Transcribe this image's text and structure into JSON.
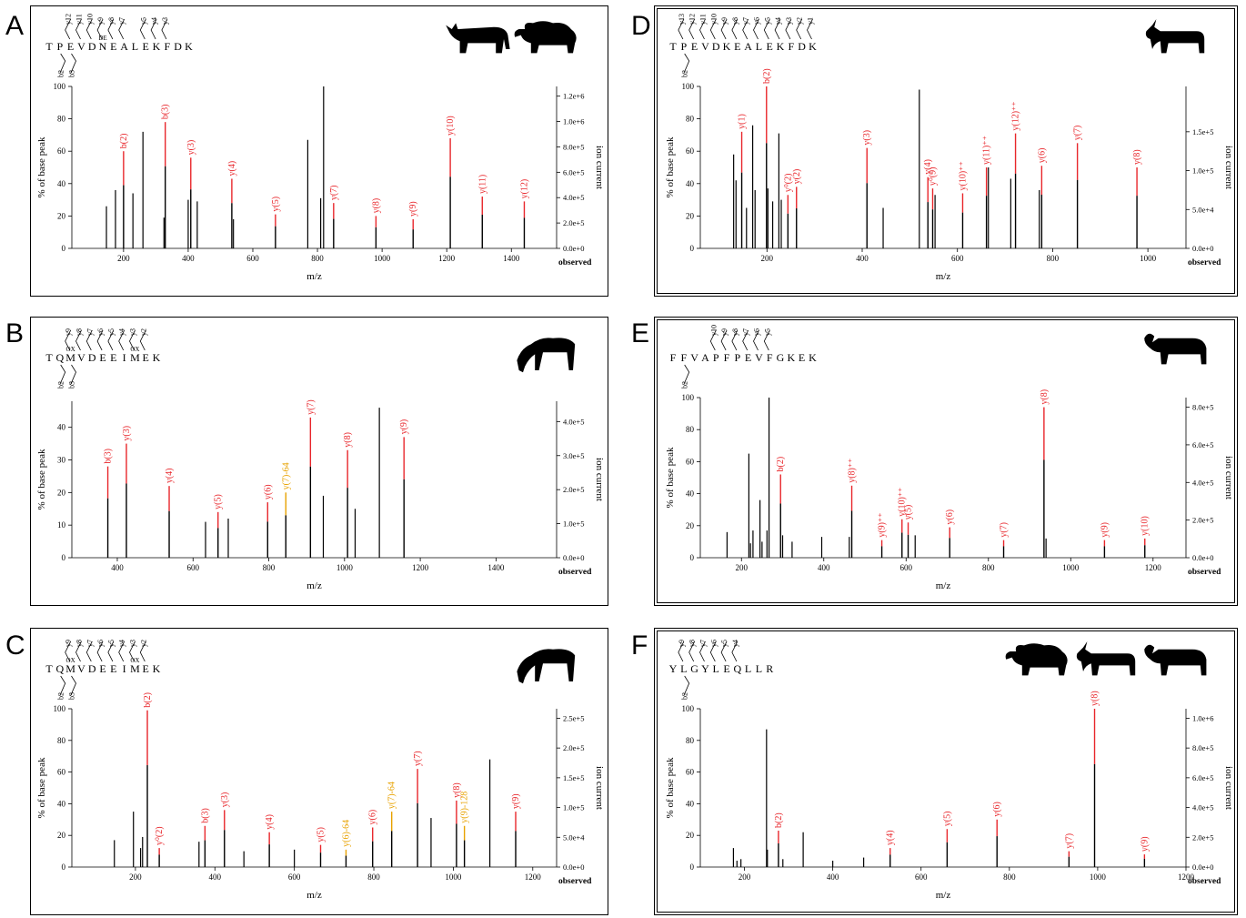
{
  "labels": {
    "ylabel_left": "% of base peak",
    "ylabel_right": "ion current",
    "xlabel": "m/z",
    "observed": "observed"
  },
  "colors": {
    "frag": "#e8262b",
    "neutral": "#e8a200",
    "peak": "#000000"
  },
  "panels": [
    {
      "letter": "A",
      "sequence": [
        "T",
        "P",
        "E",
        "V",
        "D",
        "N",
        "E",
        "A",
        "L",
        "E",
        "K",
        "F",
        "D",
        "K"
      ],
      "seq_marks": [
        {
          "index": 5,
          "text": "DE"
        }
      ],
      "y_ions": [
        "y12",
        "y11",
        "y10",
        "y9",
        "y8",
        "y7",
        "y5",
        "y4",
        "y3"
      ],
      "b_ions": [
        "b2",
        "b3"
      ],
      "animals": [
        "cow-icon",
        "sheep-icon"
      ],
      "chart_data": {
        "type": "bar",
        "xlabel": "m/z",
        "ylabel": "% of base peak",
        "y2label": "ion current",
        "xlim": [
          40,
          1540
        ],
        "ylim": [
          0,
          100
        ],
        "xticks": [
          200,
          400,
          600,
          800,
          1000,
          1200,
          1400
        ],
        "yticks": [
          0,
          20,
          40,
          60,
          80,
          100
        ],
        "y2ticks": [
          "0.0e+0",
          "2.0e+5",
          "4.0e+5",
          "6.0e+5",
          "8.0e+5",
          "1.0e+6",
          "1.2e+6"
        ],
        "peaks": [
          {
            "x": 147,
            "y": 26
          },
          {
            "x": 175,
            "y": 36
          },
          {
            "x": 200,
            "y": 60,
            "label": "b(2)",
            "color": "frag"
          },
          {
            "x": 229,
            "y": 34
          },
          {
            "x": 260,
            "y": 72
          },
          {
            "x": 325,
            "y": 19
          },
          {
            "x": 329,
            "y": 78,
            "label": "b(3)",
            "color": "frag"
          },
          {
            "x": 400,
            "y": 30
          },
          {
            "x": 408,
            "y": 56,
            "label": "y(3)",
            "color": "frag"
          },
          {
            "x": 428,
            "y": 29
          },
          {
            "x": 535,
            "y": 43,
            "label": "y(4)",
            "color": "frag"
          },
          {
            "x": 540,
            "y": 18
          },
          {
            "x": 670,
            "y": 21,
            "label": "y(5)",
            "color": "frag"
          },
          {
            "x": 770,
            "y": 67
          },
          {
            "x": 810,
            "y": 31
          },
          {
            "x": 819,
            "y": 100
          },
          {
            "x": 850,
            "y": 28,
            "label": "y(7)",
            "color": "frag"
          },
          {
            "x": 981,
            "y": 20,
            "label": "y(8)",
            "color": "frag"
          },
          {
            "x": 1096,
            "y": 18,
            "label": "y(9)",
            "color": "frag"
          },
          {
            "x": 1211,
            "y": 68,
            "label": "y(10)",
            "color": "frag"
          },
          {
            "x": 1310,
            "y": 32,
            "label": "y(11)",
            "color": "frag"
          },
          {
            "x": 1440,
            "y": 29,
            "label": "y(12)",
            "color": "frag"
          }
        ]
      }
    },
    {
      "letter": "B",
      "sequence": [
        "T",
        "Q",
        "M",
        "V",
        "D",
        "E",
        "E",
        "I",
        "M",
        "E",
        "K"
      ],
      "seq_marks": [
        {
          "index": 2,
          "text": "OX"
        },
        {
          "index": 8,
          "text": "OX"
        }
      ],
      "y_ions": [
        "y9",
        "y8",
        "y7",
        "y6",
        "y5",
        "y4",
        "y3",
        "y2"
      ],
      "b_ions": [
        "b2",
        "b3"
      ],
      "animals": [
        "horse-icon"
      ],
      "chart_data": {
        "type": "bar",
        "xlabel": "m/z",
        "ylabel": "% of base peak",
        "y2label": "ion current",
        "xlim": [
          280,
          1560
        ],
        "ylim": [
          0,
          48
        ],
        "xticks": [
          400,
          600,
          800,
          1000,
          1200,
          1400
        ],
        "yticks": [
          0,
          10,
          20,
          30,
          40
        ],
        "y2ticks": [
          "0.0e+0",
          "1.0e+5",
          "2.0e+5",
          "3.0e+5",
          "4.0e+5"
        ],
        "peaks": [
          {
            "x": 375,
            "y": 28,
            "label": "b(3)",
            "color": "frag"
          },
          {
            "x": 424,
            "y": 35,
            "label": "y(3)",
            "color": "frag"
          },
          {
            "x": 537,
            "y": 22,
            "label": "y(4)",
            "color": "frag"
          },
          {
            "x": 633,
            "y": 11
          },
          {
            "x": 666,
            "y": 14,
            "label": "y(5)",
            "color": "frag"
          },
          {
            "x": 693,
            "y": 12
          },
          {
            "x": 797,
            "y": 17,
            "label": "y(6)",
            "color": "frag"
          },
          {
            "x": 845,
            "y": 20,
            "label": "y(7)-64",
            "color": "neutral"
          },
          {
            "x": 910,
            "y": 43,
            "label": "y(7)",
            "color": "frag"
          },
          {
            "x": 944,
            "y": 19
          },
          {
            "x": 1008,
            "y": 33,
            "label": "y(8)",
            "color": "frag"
          },
          {
            "x": 1028,
            "y": 15
          },
          {
            "x": 1092,
            "y": 46
          },
          {
            "x": 1157,
            "y": 37,
            "label": "y(9)",
            "color": "frag"
          }
        ]
      }
    },
    {
      "letter": "C",
      "sequence": [
        "T",
        "Q",
        "M",
        "V",
        "D",
        "E",
        "E",
        "I",
        "M",
        "E",
        "K"
      ],
      "seq_marks": [
        {
          "index": 2,
          "text": "OX"
        },
        {
          "index": 8,
          "text": "OX"
        }
      ],
      "y_ions": [
        "y9",
        "y8",
        "y7",
        "y6",
        "y5",
        "y4",
        "y3",
        "y2"
      ],
      "b_ions": [
        "b2",
        "b3"
      ],
      "animals": [
        "horse-icon"
      ],
      "chart_data": {
        "type": "bar",
        "xlabel": "m/z",
        "ylabel": "% of base peak",
        "y2label": "ion current",
        "xlim": [
          40,
          1260
        ],
        "ylim": [
          0,
          100
        ],
        "xticks": [
          200,
          400,
          600,
          800,
          1000,
          1200
        ],
        "yticks": [
          0,
          20,
          40,
          60,
          80,
          100
        ],
        "y2ticks": [
          "0.0e+0",
          "5.0e+4",
          "1.0e+5",
          "1.5e+5",
          "2.0e+5",
          "2.5e+5"
        ],
        "peaks": [
          {
            "x": 147,
            "y": 17
          },
          {
            "x": 195,
            "y": 35
          },
          {
            "x": 213,
            "y": 12
          },
          {
            "x": 218,
            "y": 19
          },
          {
            "x": 230,
            "y": 99,
            "label": "b(2)",
            "color": "frag"
          },
          {
            "x": 260,
            "y": 12,
            "label": "y⁰(2)",
            "color": "frag"
          },
          {
            "x": 360,
            "y": 16
          },
          {
            "x": 375,
            "y": 26,
            "label": "b(3)",
            "color": "frag"
          },
          {
            "x": 424,
            "y": 36,
            "label": "y(3)",
            "color": "frag"
          },
          {
            "x": 473,
            "y": 10
          },
          {
            "x": 537,
            "y": 22,
            "label": "y(4)",
            "color": "frag"
          },
          {
            "x": 600,
            "y": 11
          },
          {
            "x": 666,
            "y": 14,
            "label": "y(5)",
            "color": "frag"
          },
          {
            "x": 730,
            "y": 11,
            "label": "y(6)-64",
            "color": "neutral"
          },
          {
            "x": 797,
            "y": 25,
            "label": "y(6)",
            "color": "frag"
          },
          {
            "x": 845,
            "y": 35,
            "label": "y(7)-64",
            "color": "neutral"
          },
          {
            "x": 910,
            "y": 62,
            "label": "y(7)",
            "color": "frag"
          },
          {
            "x": 944,
            "y": 31
          },
          {
            "x": 1008,
            "y": 42,
            "label": "y(8)",
            "color": "frag"
          },
          {
            "x": 1028,
            "y": 26,
            "label": "y(9)-128",
            "color": "neutral"
          },
          {
            "x": 1092,
            "y": 68
          },
          {
            "x": 1157,
            "y": 35,
            "label": "y(9)",
            "color": "frag"
          }
        ]
      }
    },
    {
      "letter": "D",
      "sequence": [
        "T",
        "P",
        "E",
        "V",
        "D",
        "K",
        "E",
        "A",
        "L",
        "E",
        "K",
        "F",
        "D",
        "K"
      ],
      "seq_marks": [],
      "y_ions": [
        "y13",
        "y12",
        "y11",
        "y10",
        "y9",
        "y8",
        "y7",
        "y6",
        "y5",
        "y4",
        "y3",
        "y2",
        "y1"
      ],
      "b_ions": [
        "b2"
      ],
      "animals": [
        "goat-icon"
      ],
      "chart_data": {
        "type": "bar",
        "xlabel": "m/z",
        "ylabel": "% of base peak",
        "y2label": "ion current",
        "xlim": [
          60,
          1080
        ],
        "ylim": [
          0,
          100
        ],
        "xticks": [
          200,
          400,
          600,
          800,
          1000
        ],
        "yticks": [
          0,
          20,
          40,
          60,
          80,
          100
        ],
        "y2ticks": [
          "0.0e+0",
          "5.0e+4",
          "1.0e+5",
          "1.5e+5"
        ],
        "peaks": [
          {
            "x": 130,
            "y": 58
          },
          {
            "x": 135,
            "y": 42
          },
          {
            "x": 147,
            "y": 72,
            "label": "y(1)",
            "color": "frag"
          },
          {
            "x": 157,
            "y": 25
          },
          {
            "x": 170,
            "y": 76
          },
          {
            "x": 175,
            "y": 36
          },
          {
            "x": 199,
            "y": 100,
            "label": "b(2)",
            "color": "frag"
          },
          {
            "x": 202,
            "y": 37
          },
          {
            "x": 212,
            "y": 29
          },
          {
            "x": 225,
            "y": 71
          },
          {
            "x": 230,
            "y": 30
          },
          {
            "x": 244,
            "y": 33,
            "label": "y⁰(2)",
            "color": "frag"
          },
          {
            "x": 262,
            "y": 38,
            "label": "y(2)",
            "color": "frag"
          },
          {
            "x": 410,
            "y": 62,
            "label": "y(3)",
            "color": "frag"
          },
          {
            "x": 444,
            "y": 25
          },
          {
            "x": 520,
            "y": 98
          },
          {
            "x": 538,
            "y": 44,
            "label": "y(4)",
            "color": "frag"
          },
          {
            "x": 548,
            "y": 37,
            "label": "y⁰(9)",
            "color": "frag"
          },
          {
            "x": 553,
            "y": 33
          },
          {
            "x": 611,
            "y": 34,
            "label": "y(10)⁺⁺",
            "color": "frag"
          },
          {
            "x": 661,
            "y": 50,
            "label": "y(11)⁺⁺",
            "color": "frag"
          },
          {
            "x": 665,
            "y": 50
          },
          {
            "x": 712,
            "y": 43
          },
          {
            "x": 722,
            "y": 71,
            "label": "y(12)⁺⁺",
            "color": "frag"
          },
          {
            "x": 772,
            "y": 36
          },
          {
            "x": 777,
            "y": 51,
            "label": "y(6)",
            "color": "frag"
          },
          {
            "x": 852,
            "y": 65,
            "label": "y(7)",
            "color": "frag"
          },
          {
            "x": 977,
            "y": 50,
            "label": "y(8)",
            "color": "frag"
          }
        ]
      }
    },
    {
      "letter": "E",
      "sequence": [
        "F",
        "F",
        "V",
        "A",
        "P",
        "F",
        "P",
        "E",
        "V",
        "F",
        "G",
        "K",
        "E",
        "K"
      ],
      "seq_marks": [],
      "y_ions": [
        "y10",
        "y9",
        "y8",
        "y7",
        "y6",
        "y5"
      ],
      "b_ions": [
        "b2"
      ],
      "animals": [
        "buffalo-icon"
      ],
      "chart_data": {
        "type": "bar",
        "xlabel": "m/z",
        "ylabel": "% of base peak",
        "y2label": "ion current",
        "xlim": [
          100,
          1280
        ],
        "ylim": [
          0,
          100
        ],
        "xticks": [
          200,
          400,
          600,
          800,
          1000,
          1200
        ],
        "yticks": [
          0,
          20,
          40,
          60,
          80,
          100
        ],
        "y2ticks": [
          "0.0e+0",
          "2.0e+5",
          "4.0e+5",
          "6.0e+5",
          "8.0e+5"
        ],
        "peaks": [
          {
            "x": 165,
            "y": 16
          },
          {
            "x": 218,
            "y": 65
          },
          {
            "x": 222,
            "y": 9
          },
          {
            "x": 228,
            "y": 17
          },
          {
            "x": 245,
            "y": 36
          },
          {
            "x": 250,
            "y": 10
          },
          {
            "x": 262,
            "y": 17
          },
          {
            "x": 267,
            "y": 100
          },
          {
            "x": 295,
            "y": 52,
            "label": "b(2)",
            "color": "frag"
          },
          {
            "x": 300,
            "y": 14
          },
          {
            "x": 323,
            "y": 10
          },
          {
            "x": 395,
            "y": 13
          },
          {
            "x": 462,
            "y": 13
          },
          {
            "x": 468,
            "y": 45,
            "label": "y(8)⁺⁺",
            "color": "frag"
          },
          {
            "x": 541,
            "y": 11,
            "label": "y(9)⁺⁺",
            "color": "frag"
          },
          {
            "x": 590,
            "y": 24,
            "label": "y(10)⁺⁺",
            "color": "frag"
          },
          {
            "x": 605,
            "y": 22,
            "label": "y(5)",
            "color": "frag"
          },
          {
            "x": 622,
            "y": 14
          },
          {
            "x": 706,
            "y": 19,
            "label": "y(6)",
            "color": "frag"
          },
          {
            "x": 837,
            "y": 11,
            "label": "y(7)",
            "color": "frag"
          },
          {
            "x": 935,
            "y": 94,
            "label": "y(8)",
            "color": "frag"
          },
          {
            "x": 940,
            "y": 12
          },
          {
            "x": 1082,
            "y": 11,
            "label": "y(9)",
            "color": "frag"
          },
          {
            "x": 1180,
            "y": 12,
            "label": "y(10)",
            "color": "frag"
          }
        ]
      }
    },
    {
      "letter": "F",
      "sequence": [
        "Y",
        "L",
        "G",
        "Y",
        "L",
        "E",
        "Q",
        "L",
        "L",
        "R"
      ],
      "seq_marks": [],
      "y_ions": [
        "y9",
        "y8",
        "y7",
        "y6",
        "y5",
        "y4"
      ],
      "b_ions": [
        "b2"
      ],
      "animals": [
        "sheep-icon",
        "goat-icon",
        "buffalo-icon"
      ],
      "chart_data": {
        "type": "bar",
        "xlabel": "m/z",
        "ylabel": "% of base peak",
        "y2label": "ion current",
        "xlim": [
          100,
          1200
        ],
        "ylim": [
          0,
          100
        ],
        "xticks": [
          200,
          400,
          600,
          800,
          1000,
          1200
        ],
        "yticks": [
          0,
          20,
          40,
          60,
          80,
          100
        ],
        "y2ticks": [
          "0.0e+0",
          "2.0e+5",
          "4.0e+5",
          "6.0e+5",
          "8.0e+5",
          "1.0e+6"
        ],
        "peaks": [
          {
            "x": 175,
            "y": 12
          },
          {
            "x": 183,
            "y": 4
          },
          {
            "x": 192,
            "y": 5
          },
          {
            "x": 250,
            "y": 87
          },
          {
            "x": 252,
            "y": 11
          },
          {
            "x": 277,
            "y": 23,
            "label": "b(2)",
            "color": "frag"
          },
          {
            "x": 287,
            "y": 5
          },
          {
            "x": 333,
            "y": 22
          },
          {
            "x": 400,
            "y": 4
          },
          {
            "x": 470,
            "y": 6
          },
          {
            "x": 530,
            "y": 12,
            "label": "y(4)",
            "color": "frag"
          },
          {
            "x": 659,
            "y": 24,
            "label": "y(5)",
            "color": "frag"
          },
          {
            "x": 772,
            "y": 30,
            "label": "y(6)",
            "color": "frag"
          },
          {
            "x": 935,
            "y": 10,
            "label": "y(7)",
            "color": "frag"
          },
          {
            "x": 993,
            "y": 100,
            "label": "y(8)",
            "color": "frag"
          },
          {
            "x": 1106,
            "y": 8,
            "label": "y(9)",
            "color": "frag"
          }
        ]
      }
    }
  ]
}
